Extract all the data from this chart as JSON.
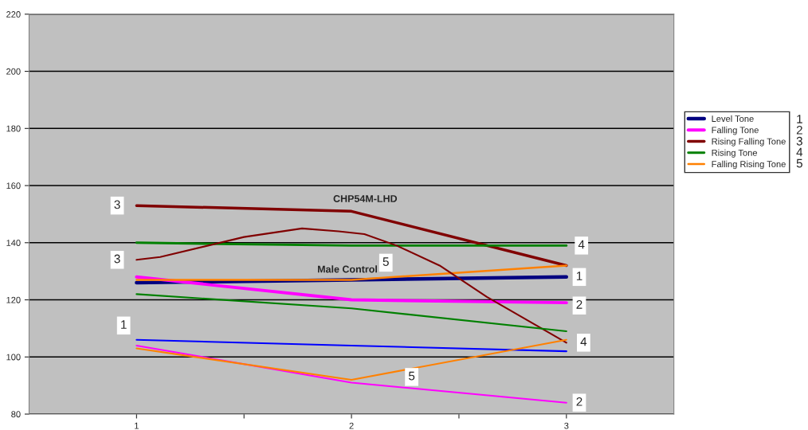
{
  "chart_data": {
    "type": "line",
    "x": [
      1,
      2,
      3
    ],
    "xlim": [
      0.5,
      3.5
    ],
    "xticks": [
      1,
      {
        "value": 1.5,
        "label": null
      },
      2,
      {
        "value": 2.5,
        "label": null
      },
      3
    ],
    "ylim": [
      80,
      220
    ],
    "yticks": [
      80,
      100,
      120,
      140,
      160,
      180,
      200,
      220
    ],
    "grid": "y",
    "legend": "right",
    "marker": "none",
    "line_style": "solid",
    "series": [
      {
        "name": "Level Tone",
        "color": "#000080",
        "values": [
          126,
          127,
          128
        ]
      },
      {
        "name": "Falling Tone",
        "color": "#ff00ff",
        "values": [
          128,
          120,
          119
        ]
      },
      {
        "name": "Rising Falling Tone",
        "color": "#800000",
        "values": [
          153,
          151,
          132
        ]
      },
      {
        "name": "Rising Tone",
        "color": "#008000",
        "values": [
          140,
          139,
          139
        ]
      },
      {
        "name": "Falling Rising Tone",
        "color": "#ff8000",
        "values": [
          127,
          127,
          132
        ]
      },
      {
        "color": "#0000ff",
        "values": [
          106,
          104,
          102
        ]
      },
      {
        "color": "#ff00ff",
        "values": [
          104,
          91,
          84
        ]
      },
      {
        "color": "#800000",
        "x": [
          1,
          1.11,
          1.5,
          1.77,
          1.94,
          2.06,
          2.21,
          2.41,
          2.63,
          3
        ],
        "values": [
          134,
          135,
          142,
          145,
          144,
          143,
          139,
          132,
          121,
          105
        ]
      },
      {
        "color": "#008000",
        "values": [
          122,
          117,
          109
        ]
      },
      {
        "color": "#ff8000",
        "values": [
          103,
          92,
          106
        ]
      }
    ],
    "annotations": [
      {
        "text": "3",
        "x": 0.91,
        "y": 153
      },
      {
        "text": "3",
        "x": 0.91,
        "y": 134
      },
      {
        "text": "1",
        "x": 0.94,
        "y": 111
      },
      {
        "text": "5",
        "x": 2.16,
        "y": 133
      },
      {
        "text": "5",
        "x": 2.28,
        "y": 93
      },
      {
        "text": "4",
        "x": 3.07,
        "y": 139
      },
      {
        "text": "1",
        "x": 3.06,
        "y": 128
      },
      {
        "text": "2",
        "x": 3.06,
        "y": 118
      },
      {
        "text": "4",
        "x": 3.08,
        "y": 105
      },
      {
        "text": "2",
        "x": 3.06,
        "y": 84
      },
      "1",
      "2",
      "3",
      "4",
      "5",
      "CHP54M-LHD",
      "Male Control"
    ]
  }
}
